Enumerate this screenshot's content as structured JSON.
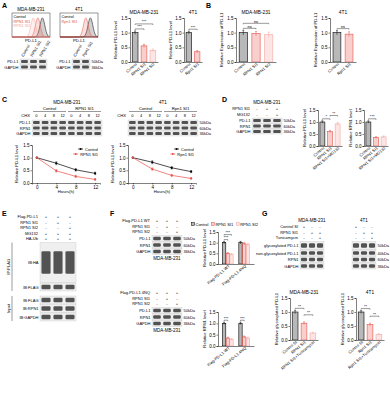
{
  "panel_labels": [
    "A",
    "B",
    "C",
    "D",
    "E",
    "F",
    "G"
  ],
  "flow": [
    {
      "title": "MDA-MB-231",
      "x_label": "PD-L1",
      "legend": [
        "Control",
        "RPN1 SI1",
        "RPN1 SI2"
      ],
      "colors": [
        "#000000",
        "#e8524a",
        "#f4a6a0"
      ]
    },
    {
      "title": "4T1",
      "x_label": "PD-L1",
      "legend": [
        "Control",
        "Rpn1 SI1"
      ],
      "colors": [
        "#000000",
        "#e8524a"
      ]
    }
  ],
  "blots": [
    {
      "lanes": [
        "Control",
        "RPN1 SI1",
        "RPN1 SI2"
      ],
      "rows": [
        {
          "label": "PD-L1"
        },
        {
          "label": "GAPDH"
        }
      ]
    },
    {
      "lanes": [
        "Control",
        "Rpn1 SI1"
      ],
      "rows": [
        {
          "label": "PD-L1",
          "size": "50kDa"
        },
        {
          "label": "GAPDH",
          "size": "36kDa"
        }
      ]
    },
    {
      "title": "MDA-MB-231",
      "lane_title": "CHX",
      "groups": [
        "Control",
        "RPN1 SI1"
      ],
      "lanes": [
        "0",
        "4",
        "8",
        "12"
      ],
      "rows": [
        {
          "label": "PD-L1"
        },
        {
          "label": "RPN1"
        },
        {
          "label": "GAPDH"
        }
      ]
    },
    {
      "title": "4T1",
      "lane_title": "CHX",
      "groups": [
        "Control",
        "Rpn1 SI1"
      ],
      "lanes": [
        "0",
        "4",
        "8",
        "12"
      ],
      "rows": [
        {
          "size": "50kDa"
        },
        {
          "size": "60kDa"
        },
        {
          "size": "36kDa"
        }
      ]
    },
    {
      "title": "MDA-MB-231",
      "conditions": [
        {
          "label": "RPN1 SI1",
          "signs": [
            "-",
            "+",
            "+"
          ]
        },
        {
          "label": "MG132",
          "signs": [
            "-",
            "-",
            "+"
          ]
        }
      ],
      "rows": [
        {
          "label": "PD-L1",
          "size": "50kDa"
        },
        {
          "label": "RPN1",
          "size": "60kDa"
        },
        {
          "label": "GAPDH",
          "size": "36kDa"
        }
      ]
    },
    {
      "conditions": [
        {
          "label": "Flag-PD-L1",
          "signs": [
            "+",
            "+",
            "+"
          ]
        },
        {
          "label": "RPN1 SI1",
          "signs": [
            "-",
            "+",
            "-"
          ]
        },
        {
          "label": "RPN1 SI2",
          "signs": [
            "-",
            "-",
            "+"
          ]
        },
        {
          "label": "MG132",
          "signs": [
            "+",
            "+",
            "+"
          ]
        },
        {
          "label": "HA-Ub",
          "signs": [
            "+",
            "+",
            "+"
          ]
        }
      ],
      "rows": [
        {
          "label": "IB:HA"
        },
        {
          "label": "IB:FLAG"
        },
        {
          "label": "IB:FLAG"
        },
        {
          "label": "IB:RPN1"
        },
        {
          "label": "IB:GAPDH"
        }
      ],
      "sections": [
        {
          "label": "IP:FLAG",
          "from": 0,
          "to": 1
        },
        {
          "label": "Input",
          "from": 2,
          "to": 4
        }
      ]
    },
    {
      "conditions": [
        {
          "label": "Flag-PD-L1 WT",
          "signs": [
            "+",
            "+",
            "+"
          ]
        },
        {
          "label": "RPN1 SI1",
          "signs": [
            "-",
            "+",
            "-"
          ]
        },
        {
          "label": "RPN1 SI2",
          "signs": [
            "-",
            "-",
            "+"
          ]
        }
      ],
      "rows": [
        {
          "label": "PD-L1",
          "size": "50kDa"
        },
        {
          "label": "RPN1",
          "size": "60kDa"
        },
        {
          "label": "GAPDH",
          "size": "36kDa"
        }
      ],
      "caption": "MDA-MB-231"
    },
    {
      "conditions": [
        {
          "label": "Flag-PD-L1 4NQ",
          "signs": [
            "+",
            "+",
            "+"
          ]
        },
        {
          "label": "RPN1 SI1",
          "signs": [
            "-",
            "+",
            "-"
          ]
        },
        {
          "label": "RPN1 SI2",
          "signs": [
            "-",
            "-",
            "+"
          ]
        }
      ],
      "rows": [
        {
          "label": "PD-L1",
          "size": "50kDa"
        },
        {
          "label": "RPN1",
          "size": "60kDa"
        },
        {
          "label": "GAPDH",
          "size": "36kDa"
        }
      ],
      "caption": "MDA-MB-231"
    },
    {
      "title": "MDA-MB-231",
      "conditions": [
        {
          "label": "Control SI",
          "signs": [
            "+",
            "-",
            "-"
          ]
        },
        {
          "label": "RPN1 SI1",
          "signs": [
            "-",
            "+",
            "+"
          ]
        },
        {
          "label": "Tunicamycin",
          "signs": [
            "-",
            "-",
            "+"
          ]
        }
      ],
      "rows": [
        {
          "label": "glycosylated PD-L1"
        },
        {
          "label": "non-glycosylated PD-L1"
        },
        {
          "label": "RPN1"
        },
        {
          "label": "GAPDH"
        }
      ]
    },
    {
      "title": "4T1",
      "conditions": [
        {
          "signs": [
            "+",
            "-",
            "-"
          ]
        },
        {
          "signs": [
            "-",
            "+",
            "+"
          ]
        },
        {
          "signs": [
            "-",
            "-",
            "+"
          ]
        }
      ],
      "rows": [
        {
          "size": "50kDa"
        },
        {
          "size": "40kDa"
        },
        {
          "size": "60kDa"
        },
        {
          "size": "36kDa"
        }
      ]
    }
  ],
  "chart_data": [
    {
      "type": "bar",
      "title": "MDA-MB-231",
      "y_label": "Relative PD-L1 level",
      "categories": [
        "Control",
        "RPN1 SI1",
        "RPN1 SI2"
      ],
      "values": [
        1.0,
        0.55,
        0.4
      ],
      "errors": [
        0.06,
        0.05,
        0.04
      ],
      "colors": [
        "#000000",
        "#e8524a",
        "#f4a6a0"
      ],
      "ylim": [
        0,
        1.5
      ],
      "yticks": [
        {
          "value": 0,
          "label": "0.0"
        },
        0.5,
        {
          "value": 1,
          "label": "1.0"
        },
        1.5
      ],
      "annotations": [
        {
          "text": "***",
          "from": 0,
          "to": 1
        },
        {
          "text": "***",
          "from": 0,
          "to": 2
        }
      ]
    },
    {
      "type": "bar",
      "title": "4T1",
      "y_label": "Relative PD-L1 level",
      "categories": [
        "Control",
        "Rpn1 SI1"
      ],
      "values": [
        1.0,
        0.35
      ],
      "errors": [
        0.05,
        0.04
      ],
      "colors": [
        "#000000",
        "#e8524a"
      ],
      "ylim": [
        0,
        1.5
      ],
      "yticks": [
        {
          "value": 0,
          "label": "0.0"
        },
        0.5,
        {
          "value": 1,
          "label": "1.0"
        },
        1.5
      ],
      "annotations": [
        {
          "text": "***",
          "from": 0,
          "to": 1
        }
      ]
    },
    {
      "type": "bar",
      "title": "MDA-MB-231",
      "y_label": "Relative Expression of PD-L1",
      "categories": [
        "Control",
        "RPN1 SI1",
        "RPN1 SI2"
      ],
      "values": [
        1.0,
        0.97,
        0.93
      ],
      "errors": [
        0.08,
        0.07,
        0.09
      ],
      "colors": [
        "#000000",
        "#e8524a",
        "#f4a6a0"
      ],
      "ylim": [
        0,
        1.5
      ],
      "yticks": [
        {
          "value": 0,
          "label": "0.0"
        },
        0.5,
        {
          "value": 1,
          "label": "1.0"
        },
        1.5
      ],
      "annotations": [
        {
          "text": "ns",
          "from": 0,
          "to": 1
        },
        {
          "text": "ns",
          "from": 0,
          "to": 2
        }
      ]
    },
    {
      "type": "bar",
      "title": "4T1",
      "y_label": "Relative Expression of PD-L1",
      "categories": [
        "Control",
        "Rpn1 SI1"
      ],
      "values": [
        1.0,
        0.95
      ],
      "errors": [
        0.07,
        0.08
      ],
      "colors": [
        "#000000",
        "#e8524a"
      ],
      "ylim": [
        0,
        1.5
      ],
      "yticks": [
        {
          "value": 0,
          "label": "0.0"
        },
        0.5,
        {
          "value": 1,
          "label": "1.0"
        },
        1.5
      ],
      "annotations": [
        {
          "text": "ns",
          "from": 0,
          "to": 1
        }
      ]
    },
    {
      "type": "line",
      "x_label": "Hours(h)",
      "y_label": "Relative PD-L1 level",
      "x": [
        0,
        4,
        8,
        12
      ],
      "xlim": [
        -1,
        13
      ],
      "xticks": [
        0,
        4,
        8,
        12
      ],
      "ylim": [
        0,
        1.5
      ],
      "yticks": [
        {
          "value": 0,
          "label": "0.0"
        },
        0.5,
        {
          "value": 1,
          "label": "1.0"
        },
        1.5
      ],
      "marker": "circle",
      "legend": "upper right",
      "series": [
        {
          "name": "Control",
          "color": "#000000",
          "values": [
            1.0,
            0.78,
            0.52,
            0.38
          ],
          "errors": [
            0,
            0.06,
            0.05,
            0.05
          ]
        },
        {
          "name": "RPN1 SI1",
          "color": "#e8524a",
          "values": [
            1.0,
            0.48,
            0.26,
            0.14
          ],
          "errors": [
            0,
            0.05,
            0.04,
            0.03
          ]
        }
      ]
    },
    {
      "type": "line",
      "x_label": "Hours(h)",
      "y_label": "Relative PD-L1 level",
      "x": [
        0,
        4,
        8,
        12
      ],
      "xlim": [
        -1,
        13
      ],
      "xticks": [
        0,
        4,
        8,
        12
      ],
      "ylim": [
        0,
        1.5
      ],
      "yticks": [
        {
          "value": 0,
          "label": "0.0"
        },
        0.5,
        {
          "value": 1,
          "label": "1.0"
        },
        1.5
      ],
      "marker": "circle",
      "legend": "upper right",
      "series": [
        {
          "name": "Control",
          "color": "#000000",
          "values": [
            1.0,
            0.82,
            0.6,
            0.45
          ],
          "errors": [
            0,
            0.06,
            0.05,
            0.04
          ]
        },
        {
          "name": "Rpn1 SI1",
          "color": "#e8524a",
          "values": [
            1.0,
            0.55,
            0.3,
            0.18
          ],
          "errors": [
            0,
            0.05,
            0.04,
            0.03
          ]
        }
      ]
    },
    {
      "type": "bar",
      "y_label": "Relative PD-L1 level",
      "categories": [
        "Control",
        "RPN1 SI1",
        "RPN1 SI1+MG132"
      ],
      "values": [
        1.0,
        0.6,
        0.92
      ],
      "errors": [
        0.05,
        0.05,
        0.06
      ],
      "colors": [
        "#000000",
        "#e8524a",
        "#f4a6a0"
      ],
      "ylim": [
        0,
        1.5
      ],
      "yticks": [
        {
          "value": 0,
          "label": "0.0"
        },
        0.5,
        {
          "value": 1,
          "label": "1.0"
        },
        1.5
      ],
      "annotations": [
        {
          "text": "*",
          "from": 0,
          "to": 1
        },
        {
          "text": "**",
          "from": 1,
          "to": 2
        }
      ]
    },
    {
      "type": "bar",
      "y_label": "Relative RPN1 level",
      "categories": [
        "Control",
        "RPN1 SI1",
        "RPN1 SI1+MG132"
      ],
      "values": [
        1.0,
        0.35,
        0.38
      ],
      "errors": [
        0.05,
        0.04,
        0.04
      ],
      "colors": [
        "#000000",
        "#e8524a",
        "#f4a6a0"
      ],
      "ylim": [
        0,
        1.5
      ],
      "yticks": [
        {
          "value": 0,
          "label": "0.0"
        },
        0.5,
        {
          "value": 1,
          "label": "1.0"
        },
        1.5
      ],
      "annotations": [
        {
          "text": "***",
          "from": 0,
          "to": 1
        }
      ]
    },
    {
      "type": "bar",
      "y_label": "Relative PD-L1 level",
      "categories": [
        "Flag-PD-L1 WT",
        "Flag-PD-L1 4NQ"
      ],
      "legend": "upper right",
      "series": [
        {
          "name": "Control",
          "color": "#000000",
          "values": [
            1.0,
            1.0
          ],
          "errors": [
            0.05,
            0.06
          ]
        },
        {
          "name": "RPN1 SI1",
          "color": "#e8524a",
          "values": [
            0.5,
            0.95
          ],
          "errors": [
            0.04,
            0.06
          ]
        },
        {
          "name": "RPN1 SI2",
          "color": "#f4a6a0",
          "values": [
            0.45,
            0.92
          ],
          "errors": [
            0.04,
            0.05
          ]
        }
      ],
      "ylim": [
        0,
        1.5
      ],
      "yticks": [
        {
          "value": 0,
          "label": "0.0"
        },
        0.5,
        {
          "value": 1,
          "label": "1.0"
        },
        1.5
      ],
      "annotations": [
        {
          "text": "***",
          "category": 0,
          "from": 0,
          "to": 1
        },
        {
          "text": "***",
          "category": 0,
          "from": 0,
          "to": 2
        }
      ]
    },
    {
      "type": "bar",
      "y_label": "Relative RPN1 level",
      "categories": [
        "Flag-PD-L1 WT",
        "Flag-PD-L1 4NQ"
      ],
      "series": [
        {
          "name": "Control",
          "color": "#000000",
          "values": [
            1.0,
            1.0
          ],
          "errors": [
            0.05,
            0.05
          ]
        },
        {
          "name": "RPN1 SI1",
          "color": "#e8524a",
          "values": [
            0.35,
            0.4
          ],
          "errors": [
            0.04,
            0.04
          ]
        },
        {
          "name": "RPN1 SI2",
          "color": "#f4a6a0",
          "values": [
            0.3,
            0.35
          ],
          "errors": [
            0.03,
            0.04
          ]
        }
      ],
      "ylim": [
        0,
        1.5
      ],
      "yticks": [
        {
          "value": 0,
          "label": "0.0"
        },
        0.5,
        {
          "value": 1,
          "label": "1.0"
        },
        1.5
      ],
      "annotations": [
        {
          "text": "***",
          "category": 0,
          "from": 0,
          "to": 1
        },
        {
          "text": "***",
          "category": 1,
          "from": 0,
          "to": 1
        }
      ]
    },
    {
      "type": "bar",
      "title": "MDA-MB-231",
      "y_label": "Relative glycosylated PD-L1",
      "categories": [
        "Control SI",
        "RPN1 SI1",
        "RPN1 SI1+Tunicamycin"
      ],
      "values": [
        1.0,
        0.6,
        0.25
      ],
      "errors": [
        0.06,
        0.05,
        0.03
      ],
      "colors": [
        "#000000",
        "#e8524a",
        "#f4a6a0"
      ],
      "ylim": [
        0,
        1.5
      ],
      "yticks": [
        {
          "value": 0,
          "label": "0.0"
        },
        0.5,
        {
          "value": 1,
          "label": "1.0"
        },
        1.5
      ],
      "annotations": [
        {
          "text": "**",
          "from": 0,
          "to": 1
        },
        {
          "text": "**",
          "from": 1,
          "to": 2
        }
      ]
    },
    {
      "type": "bar",
      "title": "4T1",
      "y_label": "Relative glycosylated PD-L1",
      "categories": [
        "Control SI",
        "Rpn1 SI1",
        "Rpn1 SI1+Tunicamycin"
      ],
      "values": [
        1.0,
        0.55,
        0.2
      ],
      "errors": [
        0.05,
        0.05,
        0.03
      ],
      "colors": [
        "#000000",
        "#e8524a",
        "#f4a6a0"
      ],
      "ylim": [
        0,
        1.5
      ],
      "yticks": [
        {
          "value": 0,
          "label": "0.0"
        },
        0.5,
        {
          "value": 1,
          "label": "1.0"
        },
        1.5
      ],
      "annotations": [
        {
          "text": "**",
          "from": 0,
          "to": 1
        },
        {
          "text": "**",
          "from": 1,
          "to": 2
        }
      ]
    }
  ]
}
